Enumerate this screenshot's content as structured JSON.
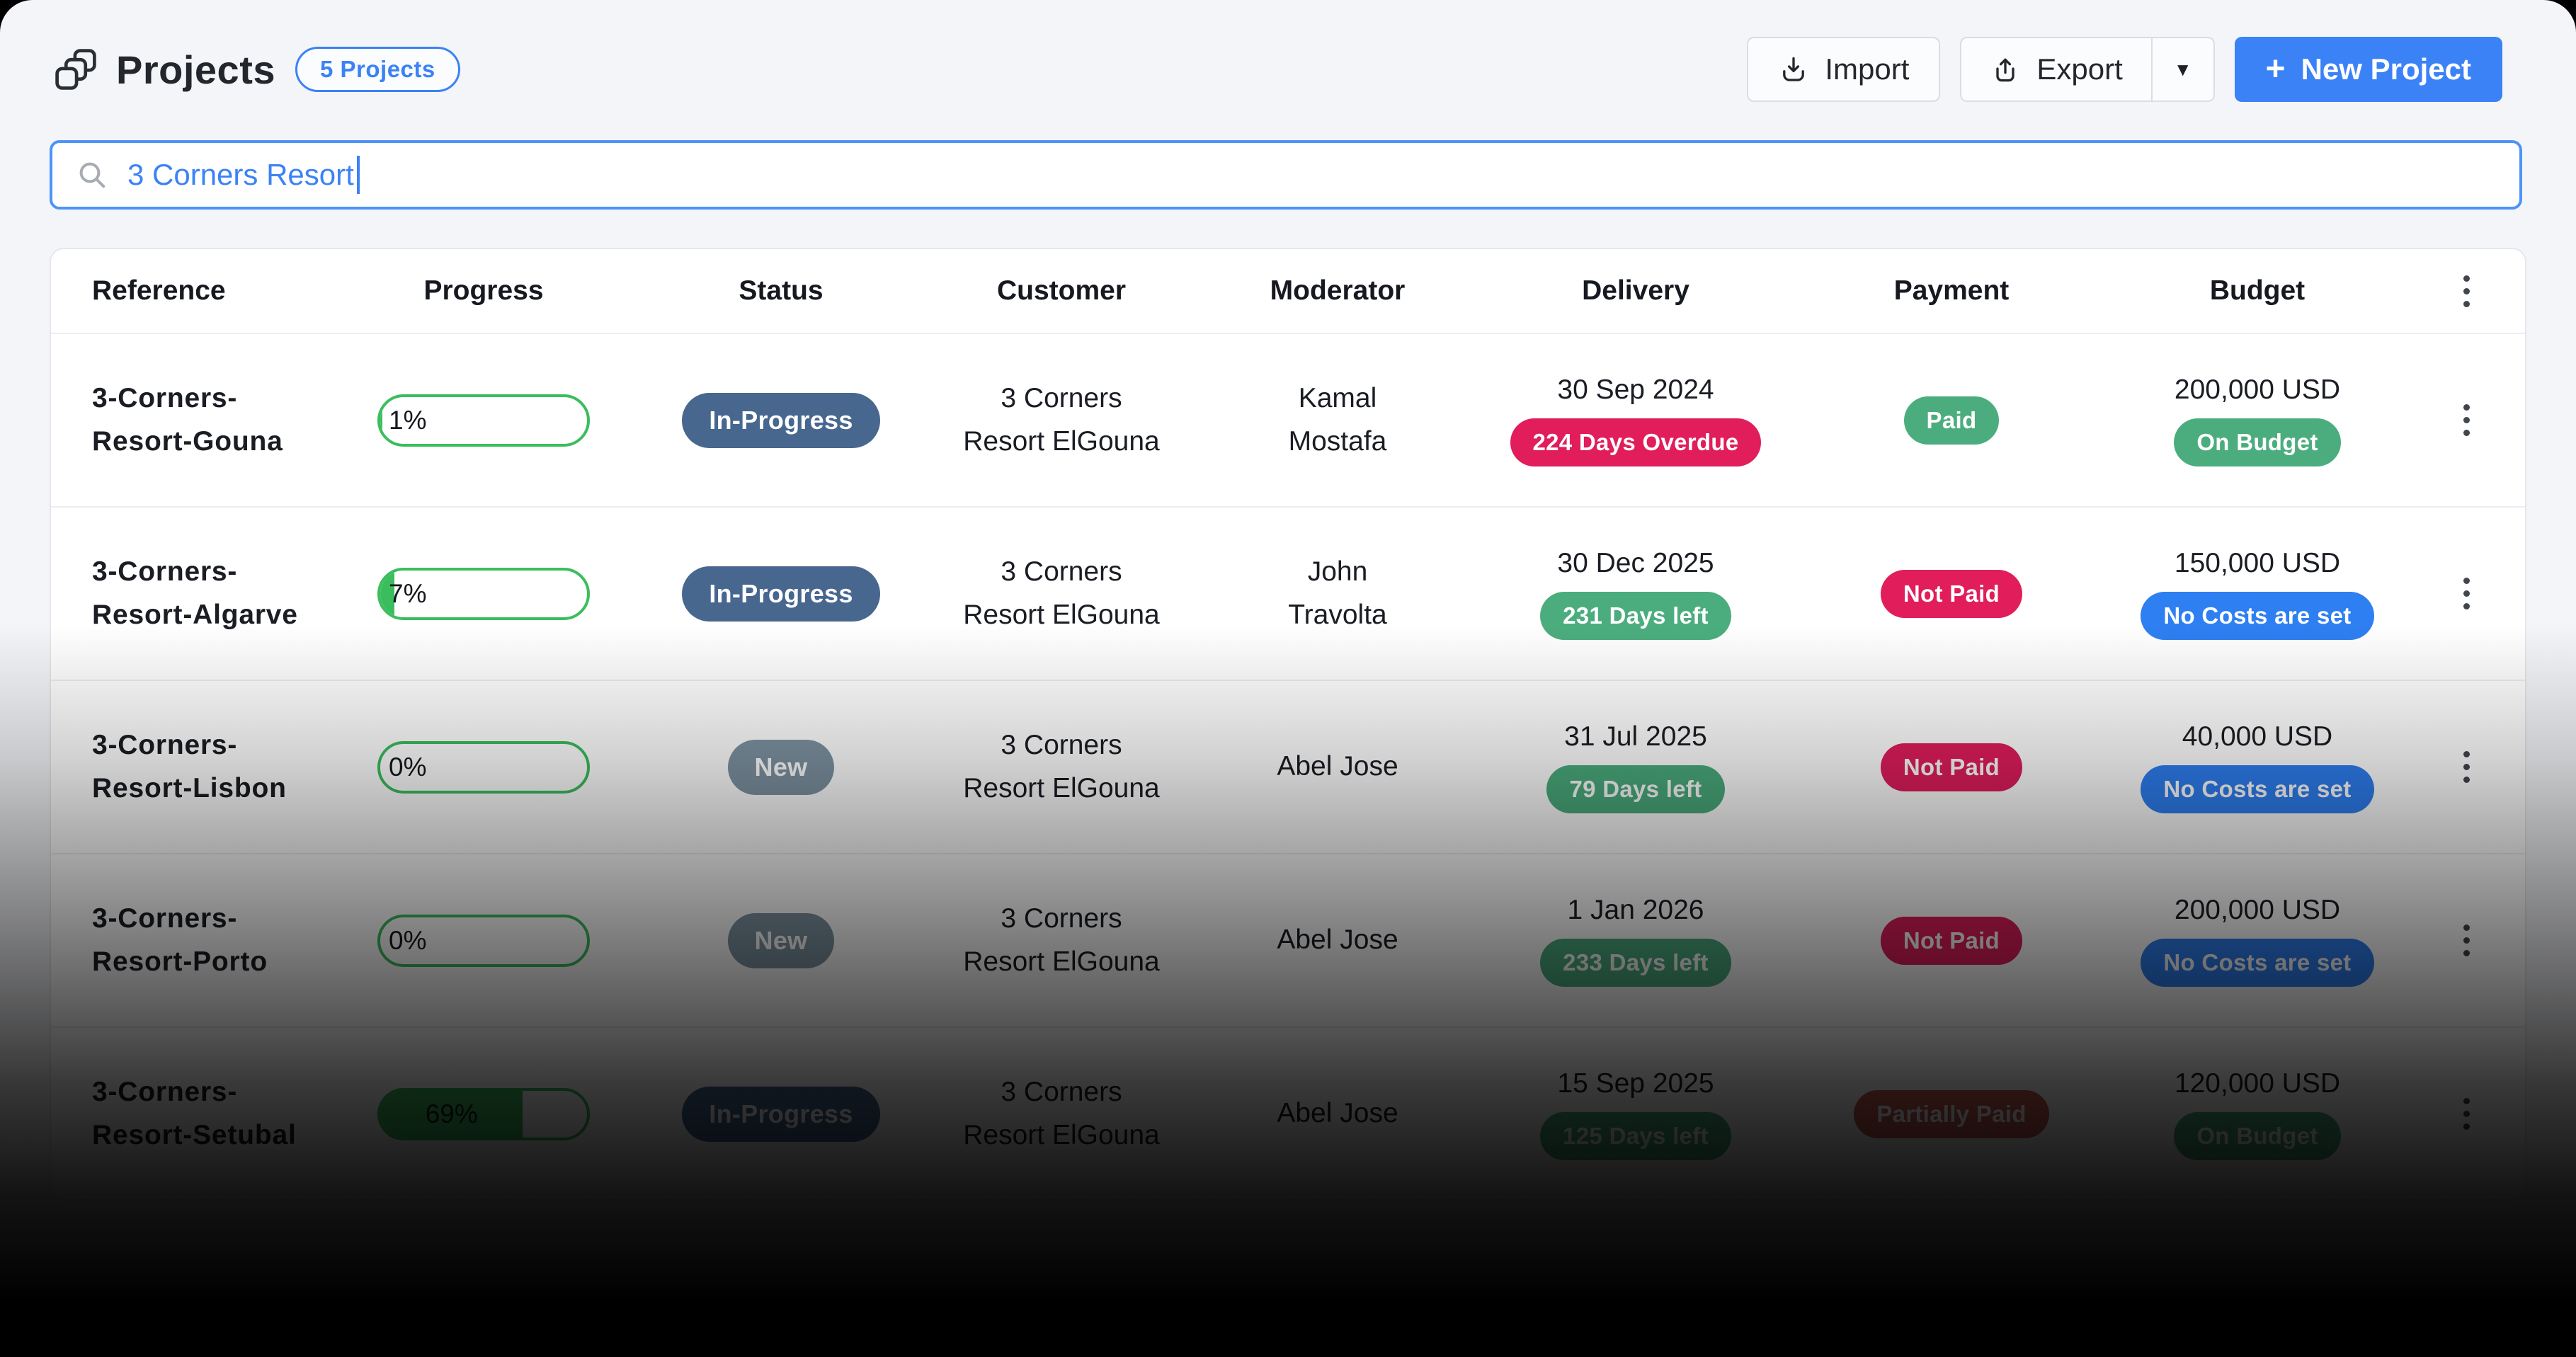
{
  "header": {
    "title": "Projects",
    "count_badge": "5 Projects",
    "import_label": "Import",
    "export_label": "Export",
    "new_project_plus": "+",
    "new_project_label": "New Project"
  },
  "search": {
    "value": "3 Corners Resort"
  },
  "colors": {
    "accent_blue": "#3B82F6",
    "green": "#4BAD7E",
    "red": "#E11D5C",
    "muted_red": "#C75B52",
    "slate_blue": "#47678F",
    "gray_blue": "#7E93A2",
    "progress_green": "#3BBD5E"
  },
  "table": {
    "columns": [
      "Reference",
      "Progress",
      "Status",
      "Customer",
      "Moderator",
      "Delivery",
      "Payment",
      "Budget"
    ],
    "rows": [
      {
        "reference": "3-Corners-Resort-Gouna",
        "progress": {
          "label": "1%",
          "value": 1
        },
        "status": {
          "label": "In-Progress",
          "color": "#47678F"
        },
        "customer": "3 Corners Resort ElGouna",
        "moderator": "Kamal Mostafa",
        "delivery": {
          "date": "30 Sep 2024",
          "badge": "224 Days Overdue",
          "badge_color": "#E11D5C"
        },
        "payment": {
          "label": "Paid",
          "color": "#4BAD7E"
        },
        "budget": {
          "amount": "200,000 USD",
          "badge": "On Budget",
          "badge_color": "#4BAD7E"
        }
      },
      {
        "reference": "3-Corners-Resort-Algarve",
        "progress": {
          "label": "7%",
          "value": 7
        },
        "status": {
          "label": "In-Progress",
          "color": "#47678F"
        },
        "customer": "3 Corners Resort ElGouna",
        "moderator": "John Travolta",
        "delivery": {
          "date": "30 Dec 2025",
          "badge": "231 Days left",
          "badge_color": "#4BAD7E"
        },
        "payment": {
          "label": "Not Paid",
          "color": "#E11D5C"
        },
        "budget": {
          "amount": "150,000 USD",
          "badge": "No Costs are set",
          "badge_color": "#2E7FF2"
        }
      },
      {
        "reference": "3-Corners-Resort-Lisbon",
        "progress": {
          "label": "0%",
          "value": 0
        },
        "status": {
          "label": "New",
          "color": "#7E93A2"
        },
        "customer": "3 Corners Resort ElGouna",
        "moderator": "Abel Jose",
        "delivery": {
          "date": "31 Jul 2025",
          "badge": "79 Days left",
          "badge_color": "#4BAD7E"
        },
        "payment": {
          "label": "Not Paid",
          "color": "#E11D5C"
        },
        "budget": {
          "amount": "40,000 USD",
          "badge": "No Costs are set",
          "badge_color": "#2E7FF2"
        }
      },
      {
        "reference": "3-Corners-Resort-Porto",
        "progress": {
          "label": "0%",
          "value": 0
        },
        "status": {
          "label": "New",
          "color": "#7E93A2"
        },
        "customer": "3 Corners Resort ElGouna",
        "moderator": "Abel Jose",
        "delivery": {
          "date": "1 Jan 2026",
          "badge": "233 Days left",
          "badge_color": "#4BAD7E"
        },
        "payment": {
          "label": "Not Paid",
          "color": "#E11D5C"
        },
        "budget": {
          "amount": "200,000 USD",
          "badge": "No Costs are set",
          "badge_color": "#2E7FF2"
        }
      },
      {
        "reference": "3-Corners-Resort-Setubal",
        "progress": {
          "label": "69%",
          "value": 69
        },
        "status": {
          "label": "In-Progress",
          "color": "#47678F"
        },
        "customer": "3 Corners Resort ElGouna",
        "moderator": "Abel Jose",
        "delivery": {
          "date": "15 Sep 2025",
          "badge": "125 Days left",
          "badge_color": "#4BAD7E"
        },
        "payment": {
          "label": "Partially Paid",
          "color": "#C75B52"
        },
        "budget": {
          "amount": "120,000 USD",
          "badge": "On Budget",
          "badge_color": "#4BAD7E"
        }
      }
    ]
  }
}
